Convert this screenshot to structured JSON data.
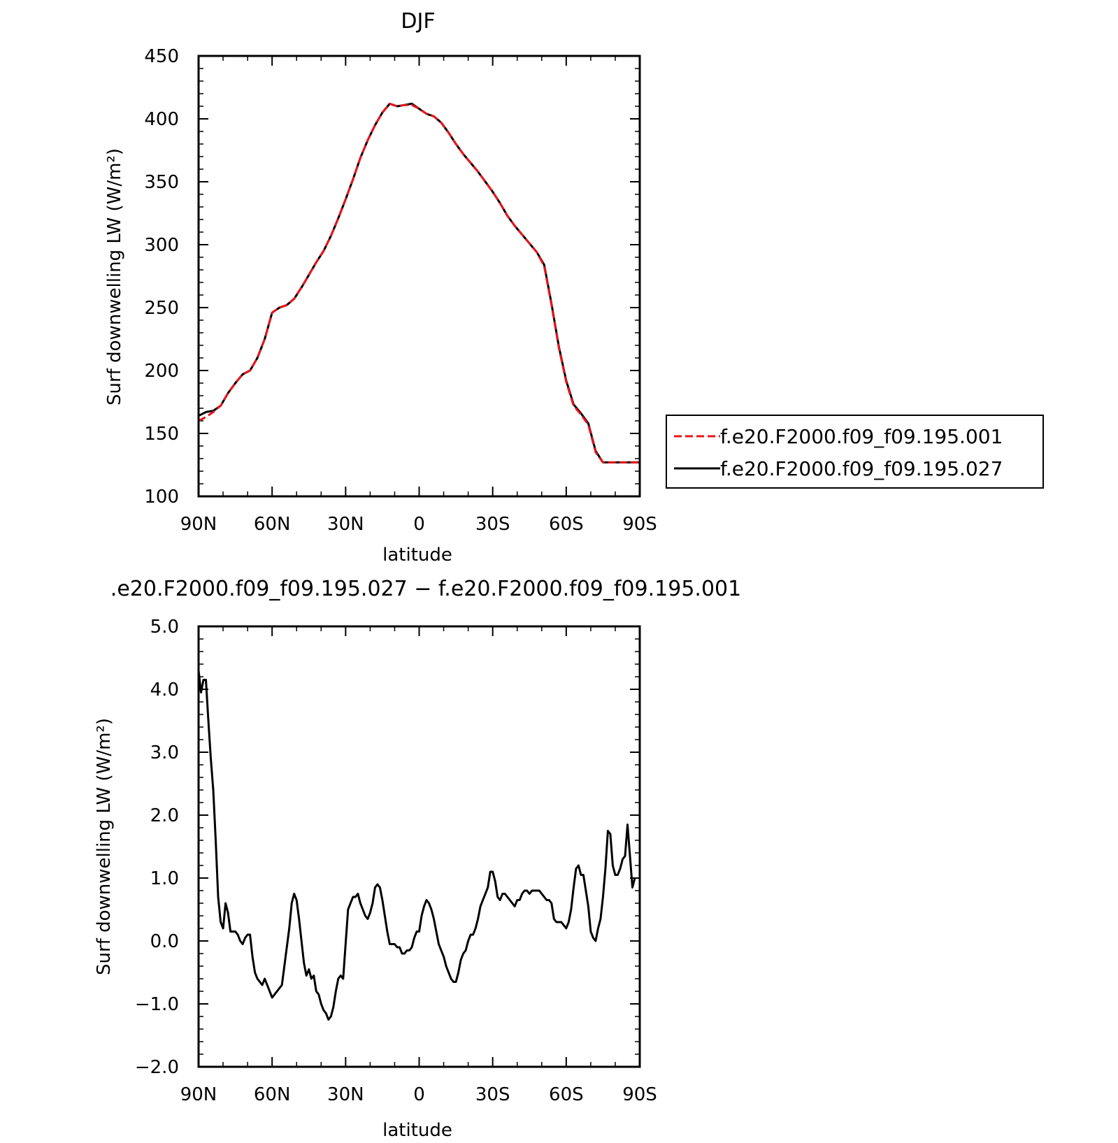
{
  "chart_data": [
    {
      "type": "line",
      "title": "DJF",
      "xlabel": "latitude",
      "ylabel": "Surf downwelling LW (W/m²)",
      "xlim": [
        90,
        -90
      ],
      "ylim": [
        100,
        450
      ],
      "x_ticks": [
        90,
        60,
        30,
        0,
        -30,
        -60,
        -90
      ],
      "x_tick_labels": [
        "90N",
        "60N",
        "30N",
        "0",
        "30S",
        "60S",
        "90S"
      ],
      "y_ticks": [
        100,
        150,
        200,
        250,
        300,
        350,
        400,
        450
      ],
      "y_tick_labels": [
        "100",
        "150",
        "200",
        "250",
        "300",
        "350",
        "400",
        "450"
      ],
      "legend": {
        "placement": "right"
      },
      "x": [
        90,
        87,
        84,
        81,
        78,
        75,
        72,
        69,
        66,
        63,
        60,
        57,
        54,
        51,
        48,
        45,
        42,
        39,
        36,
        33,
        30,
        27,
        24,
        21,
        18,
        15,
        12,
        9,
        6,
        3,
        0,
        -3,
        -6,
        -9,
        -12,
        -15,
        -18,
        -21,
        -24,
        -27,
        -30,
        -33,
        -36,
        -39,
        -42,
        -45,
        -48,
        -51,
        -54,
        -57,
        -60,
        -63,
        -66,
        -69,
        -72,
        -75,
        -78,
        -81,
        -84,
        -87,
        -90
      ],
      "series": [
        {
          "name": "f.e20.F2000.f09_f09.195.001",
          "color": "#e8141c",
          "dash": true,
          "values": [
            160,
            163,
            167,
            172,
            182,
            190,
            197,
            200,
            210,
            225,
            246,
            250,
            252,
            257,
            266,
            276,
            286,
            295,
            307,
            321,
            336,
            352,
            369,
            383,
            395,
            405,
            412,
            410,
            411,
            411,
            408,
            404,
            402,
            397,
            389,
            380,
            372,
            365,
            358,
            350,
            342,
            333,
            323,
            315,
            308,
            301,
            294,
            283,
            252,
            218,
            191,
            172,
            165,
            157,
            135,
            127,
            127,
            127,
            127,
            127,
            127
          ]
        },
        {
          "name": "f.e20.F2000.f09_f09.195.027",
          "color": "#000000",
          "dash": false,
          "values": [
            164,
            167,
            168,
            172,
            182,
            190,
            197,
            200,
            210,
            225,
            246,
            250,
            252,
            257,
            266,
            276,
            286,
            295,
            307,
            321,
            336,
            352,
            369,
            383,
            395,
            405,
            412,
            410,
            411,
            412,
            408,
            404,
            402,
            397,
            389,
            380,
            372,
            365,
            358,
            350,
            342,
            333,
            323,
            315,
            308,
            301,
            294,
            284,
            253,
            219,
            192,
            173,
            166,
            158,
            136,
            127,
            127,
            127,
            127,
            127,
            127
          ]
        }
      ],
      "legend_labels": [
        "f.e20.F2000.f09_f09.195.001",
        "f.e20.F2000.f09_f09.195.027"
      ]
    },
    {
      "type": "line",
      "title": ".e20.F2000.f09_f09.195.027 − f.e20.F2000.f09_f09.195.001",
      "xlabel": "latitude",
      "ylabel": "Surf downwelling LW (W/m²)",
      "xlim": [
        90,
        -90
      ],
      "ylim": [
        -2.0,
        5.0
      ],
      "x_ticks": [
        90,
        60,
        30,
        0,
        -30,
        -60,
        -90
      ],
      "x_tick_labels": [
        "90N",
        "60N",
        "30N",
        "0",
        "30S",
        "60S",
        "90S"
      ],
      "y_ticks": [
        -2.0,
        -1.0,
        0.0,
        1.0,
        2.0,
        3.0,
        4.0,
        5.0
      ],
      "y_tick_labels": [
        "−2.0",
        "−1.0",
        "0.0",
        "1.0",
        "2.0",
        "3.0",
        "4.0",
        "5.0"
      ],
      "series": [
        {
          "color": "#000000",
          "points": [
            [
              90,
              4.3
            ],
            [
              89,
              3.95
            ],
            [
              88,
              4.15
            ],
            [
              87,
              4.15
            ],
            [
              86,
              3.5
            ],
            [
              85,
              2.9
            ],
            [
              84,
              2.4
            ],
            [
              83,
              1.6
            ],
            [
              82,
              0.7
            ],
            [
              81,
              0.3
            ],
            [
              80,
              0.2
            ],
            [
              79,
              0.6
            ],
            [
              78,
              0.45
            ],
            [
              77,
              0.15
            ],
            [
              75,
              0.15
            ],
            [
              74,
              0.1
            ],
            [
              73,
              0.0
            ],
            [
              72,
              -0.05
            ],
            [
              71,
              0.05
            ],
            [
              70,
              0.1
            ],
            [
              69,
              0.1
            ],
            [
              68,
              -0.25
            ],
            [
              67,
              -0.5
            ],
            [
              66,
              -0.6
            ],
            [
              65,
              -0.65
            ],
            [
              64,
              -0.7
            ],
            [
              63,
              -0.6
            ],
            [
              62,
              -0.7
            ],
            [
              61,
              -0.8
            ],
            [
              60,
              -0.9
            ],
            [
              59,
              -0.85
            ],
            [
              58,
              -0.8
            ],
            [
              57,
              -0.75
            ],
            [
              56,
              -0.7
            ],
            [
              55,
              -0.4
            ],
            [
              54,
              -0.1
            ],
            [
              53,
              0.2
            ],
            [
              52,
              0.6
            ],
            [
              51,
              0.75
            ],
            [
              50,
              0.65
            ],
            [
              49,
              0.35
            ],
            [
              48,
              0.0
            ],
            [
              47,
              -0.35
            ],
            [
              46,
              -0.55
            ],
            [
              45,
              -0.45
            ],
            [
              44,
              -0.6
            ],
            [
              43,
              -0.55
            ],
            [
              42,
              -0.8
            ],
            [
              41,
              -0.85
            ],
            [
              40,
              -1.0
            ],
            [
              39,
              -1.1
            ],
            [
              38,
              -1.15
            ],
            [
              37,
              -1.25
            ],
            [
              36,
              -1.2
            ],
            [
              35,
              -1.05
            ],
            [
              34,
              -0.8
            ],
            [
              33,
              -0.6
            ],
            [
              32,
              -0.55
            ],
            [
              31,
              -0.6
            ],
            [
              30,
              -0.05
            ],
            [
              29,
              0.5
            ],
            [
              28,
              0.6
            ],
            [
              27,
              0.7
            ],
            [
              26,
              0.7
            ],
            [
              25,
              0.75
            ],
            [
              24,
              0.6
            ],
            [
              23,
              0.5
            ],
            [
              22,
              0.4
            ],
            [
              21,
              0.35
            ],
            [
              20,
              0.45
            ],
            [
              19,
              0.6
            ],
            [
              18,
              0.85
            ],
            [
              17,
              0.9
            ],
            [
              16,
              0.85
            ],
            [
              15,
              0.65
            ],
            [
              14,
              0.4
            ],
            [
              13,
              0.15
            ],
            [
              12,
              -0.05
            ],
            [
              11,
              -0.05
            ],
            [
              10,
              -0.05
            ],
            [
              9,
              -0.1
            ],
            [
              8,
              -0.1
            ],
            [
              7,
              -0.2
            ],
            [
              6,
              -0.2
            ],
            [
              5,
              -0.15
            ],
            [
              4,
              -0.15
            ],
            [
              3,
              -0.1
            ],
            [
              2,
              0.05
            ],
            [
              1,
              0.15
            ],
            [
              0,
              0.15
            ],
            [
              -1,
              0.4
            ],
            [
              -2,
              0.55
            ],
            [
              -3,
              0.65
            ],
            [
              -4,
              0.6
            ],
            [
              -5,
              0.5
            ],
            [
              -6,
              0.35
            ],
            [
              -7,
              0.15
            ],
            [
              -8,
              -0.05
            ],
            [
              -9,
              -0.15
            ],
            [
              -10,
              -0.25
            ],
            [
              -11,
              -0.4
            ],
            [
              -12,
              -0.5
            ],
            [
              -13,
              -0.6
            ],
            [
              -14,
              -0.65
            ],
            [
              -15,
              -0.65
            ],
            [
              -16,
              -0.5
            ],
            [
              -17,
              -0.3
            ],
            [
              -18,
              -0.2
            ],
            [
              -19,
              -0.15
            ],
            [
              -20,
              0.0
            ],
            [
              -21,
              0.1
            ],
            [
              -22,
              0.1
            ],
            [
              -23,
              0.2
            ],
            [
              -24,
              0.35
            ],
            [
              -25,
              0.55
            ],
            [
              -26,
              0.65
            ],
            [
              -27,
              0.75
            ],
            [
              -28,
              0.85
            ],
            [
              -29,
              1.1
            ],
            [
              -30,
              1.1
            ],
            [
              -31,
              0.95
            ],
            [
              -32,
              0.7
            ],
            [
              -33,
              0.65
            ],
            [
              -34,
              0.75
            ],
            [
              -35,
              0.75
            ],
            [
              -36,
              0.7
            ],
            [
              -37,
              0.65
            ],
            [
              -38,
              0.6
            ],
            [
              -39,
              0.55
            ],
            [
              -40,
              0.65
            ],
            [
              -41,
              0.65
            ],
            [
              -42,
              0.75
            ],
            [
              -43,
              0.8
            ],
            [
              -44,
              0.8
            ],
            [
              -45,
              0.75
            ],
            [
              -46,
              0.8
            ],
            [
              -47,
              0.8
            ],
            [
              -48,
              0.8
            ],
            [
              -49,
              0.8
            ],
            [
              -50,
              0.75
            ],
            [
              -51,
              0.7
            ],
            [
              -52,
              0.65
            ],
            [
              -53,
              0.65
            ],
            [
              -54,
              0.6
            ],
            [
              -55,
              0.35
            ],
            [
              -56,
              0.3
            ],
            [
              -57,
              0.3
            ],
            [
              -58,
              0.3
            ],
            [
              -59,
              0.25
            ],
            [
              -60,
              0.2
            ],
            [
              -61,
              0.3
            ],
            [
              -62,
              0.5
            ],
            [
              -63,
              0.85
            ],
            [
              -64,
              1.15
            ],
            [
              -65,
              1.2
            ],
            [
              -66,
              1.05
            ],
            [
              -67,
              1.05
            ],
            [
              -68,
              0.8
            ],
            [
              -69,
              0.55
            ],
            [
              -70,
              0.15
            ],
            [
              -71,
              0.05
            ],
            [
              -72,
              0.0
            ],
            [
              -73,
              0.2
            ],
            [
              -74,
              0.35
            ],
            [
              -75,
              0.7
            ],
            [
              -76,
              1.15
            ],
            [
              -77,
              1.75
            ],
            [
              -78,
              1.7
            ],
            [
              -79,
              1.2
            ],
            [
              -80,
              1.05
            ],
            [
              -81,
              1.05
            ],
            [
              -82,
              1.15
            ],
            [
              -83,
              1.3
            ],
            [
              -84,
              1.35
            ],
            [
              -85,
              1.85
            ],
            [
              -86,
              1.35
            ],
            [
              -87,
              0.85
            ],
            [
              -88,
              1.0
            ]
          ]
        }
      ]
    }
  ]
}
